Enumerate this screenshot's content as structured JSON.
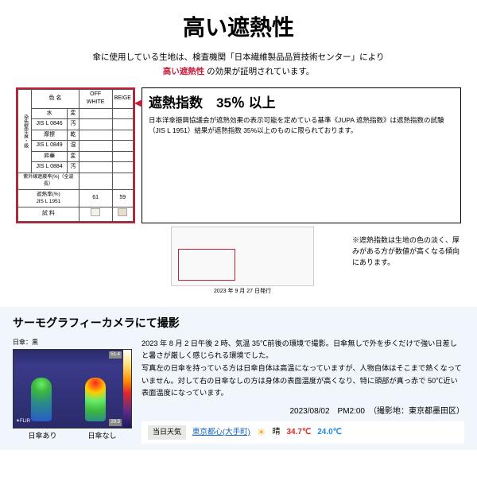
{
  "title": "高い遮熱性",
  "intro": {
    "l1": "傘に使用している生地は、検査機関「日本繊維製品品質技術センター」により",
    "hi": "高い遮熱性",
    "l2": " の効果が証明されています。"
  },
  "table": {
    "h_color": "色 名",
    "c1": "OFF WHITE",
    "c2": "BEIGE",
    "side": "染色堅牢度・級",
    "r1a": "水",
    "r1b": "変",
    "r2a": "JIS L 0846",
    "r2b": "汚",
    "r3a": "摩擦",
    "r3b": "乾",
    "r4a": "JIS L 0849",
    "r4b": "湿",
    "r5a": "昇華",
    "r5b": "変",
    "r6a": "JIS L 0884",
    "r6b": "汚",
    "uv": "紫外線遮蔽率(%)（全波長）",
    "heat_lbl": "遮熱率(%)\nJIS L 1951",
    "heat_c1": "61",
    "heat_c2": "59",
    "sample": "試 料",
    "sw1": "#f5f2eb",
    "sw2": "#e8ddc8"
  },
  "index": {
    "title": "遮熱指数　35％ 以上",
    "body": "日本洋傘振興協議会が遮熱効果の表示可能を定めている基準《JUPA 遮熱指数》は遮熱指数の試験（JIS L 1951）結果が遮熱指数 35%以上のものに限られております。"
  },
  "cert": {
    "date": "2023 年 9 月 27 日発行",
    "note": "※遮熱指数は生地の色の淡く、厚みがある方が数値が高くなる傾向にあります。"
  },
  "thermo": {
    "title": "サーモグラフィーカメラにて撮影",
    "lbl": "日傘：黒",
    "scale_hi": "51.4",
    "scale_lo": "29.5",
    "flir": "✦FLIR",
    "cap1": "日傘あり",
    "cap2": "日傘なし",
    "p1": "2023 年 8 月 2 日午後 2 時、気温 35℃前後の環境で撮影。日傘無しで外を歩くだけで強い日差しと暑さが厳しく感じられる環境でした。",
    "p2": "写真左の日傘を持っている方は日傘自体は高温になっていますが、人物自体はそこまで熱くなっていません。対して右の日傘なしの方は身体の表面温度が高くなり、特に頭部が真っ赤で 50℃近い表面温度になっています。",
    "tstamp": "2023/08/02　PM2:00　（撮影地：東京都墨田区）"
  },
  "weather": {
    "badge": "当日天気",
    "loc": "東京都心(大手町)",
    "sun": "☀",
    "cond": "晴",
    "hi": "34.7℃",
    "lo": "24.0℃"
  }
}
